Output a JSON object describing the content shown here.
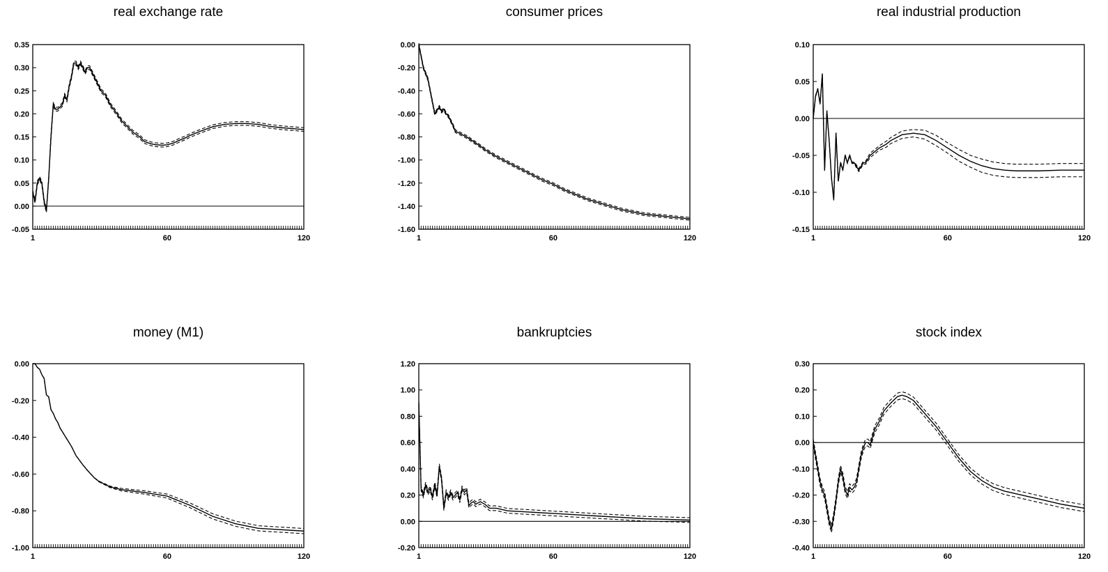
{
  "figure": {
    "x_ticks": [
      "1",
      "60",
      "120"
    ]
  },
  "chart_data": [
    {
      "type": "line",
      "title": "real exchange rate",
      "xlim": [
        1,
        120
      ],
      "ylim": [
        -0.05,
        0.35
      ],
      "y_ticks": [
        "0.35",
        "0.30",
        "0.25",
        "0.20",
        "0.15",
        "0.10",
        "0.05",
        "0.00",
        "-0.05"
      ],
      "y_tick_values": [
        0.35,
        0.3,
        0.25,
        0.2,
        0.15,
        0.1,
        0.05,
        0.0,
        -0.05
      ],
      "zero_line": true,
      "band": 0.004,
      "x": [
        1,
        2,
        3,
        4,
        5,
        6,
        7,
        8,
        9,
        10,
        11,
        12,
        14,
        15,
        16,
        17,
        18,
        19,
        20,
        21,
        22,
        23,
        24,
        25,
        26,
        27,
        28,
        29,
        30,
        31,
        33,
        35,
        38,
        40,
        43,
        45,
        48,
        50,
        53,
        55,
        58,
        60,
        63,
        65,
        68,
        70,
        75,
        80,
        85,
        90,
        95,
        100,
        105,
        110,
        115,
        120
      ],
      "y": [
        0.03,
        0.01,
        0.05,
        0.06,
        0.05,
        0.01,
        -0.01,
        0.06,
        0.15,
        0.22,
        0.21,
        0.21,
        0.22,
        0.24,
        0.23,
        0.26,
        0.28,
        0.31,
        0.31,
        0.3,
        0.31,
        0.3,
        0.29,
        0.3,
        0.3,
        0.29,
        0.28,
        0.27,
        0.26,
        0.25,
        0.24,
        0.22,
        0.2,
        0.185,
        0.17,
        0.16,
        0.15,
        0.14,
        0.135,
        0.133,
        0.132,
        0.133,
        0.137,
        0.142,
        0.148,
        0.153,
        0.163,
        0.172,
        0.177,
        0.179,
        0.179,
        0.177,
        0.173,
        0.17,
        0.168,
        0.166
      ]
    },
    {
      "type": "line",
      "title": "consumer prices",
      "xlim": [
        1,
        120
      ],
      "ylim": [
        -1.6,
        0.0
      ],
      "y_ticks": [
        "0.00",
        "-0.20",
        "-0.40",
        "-0.60",
        "-0.80",
        "-1.00",
        "-1.20",
        "-1.40",
        "-1.60"
      ],
      "y_tick_values": [
        0.0,
        -0.2,
        -0.4,
        -0.6,
        -0.8,
        -1.0,
        -1.2,
        -1.4,
        -1.6
      ],
      "zero_line": false,
      "band": 0.012,
      "x": [
        1,
        2,
        3,
        4,
        5,
        6,
        7,
        8,
        9,
        10,
        11,
        12,
        13,
        14,
        15,
        16,
        17,
        18,
        19,
        20,
        22,
        25,
        28,
        30,
        35,
        40,
        45,
        50,
        55,
        60,
        65,
        70,
        75,
        80,
        85,
        90,
        95,
        100,
        105,
        110,
        115,
        120
      ],
      "y": [
        0.0,
        -0.1,
        -0.2,
        -0.25,
        -0.3,
        -0.4,
        -0.5,
        -0.6,
        -0.57,
        -0.54,
        -0.58,
        -0.56,
        -0.6,
        -0.62,
        -0.66,
        -0.7,
        -0.75,
        -0.76,
        -0.77,
        -0.78,
        -0.8,
        -0.84,
        -0.88,
        -0.91,
        -0.97,
        -1.02,
        -1.07,
        -1.12,
        -1.17,
        -1.21,
        -1.26,
        -1.3,
        -1.34,
        -1.37,
        -1.4,
        -1.43,
        -1.45,
        -1.47,
        -1.48,
        -1.49,
        -1.5,
        -1.51
      ]
    },
    {
      "type": "line",
      "title": "real industrial production",
      "xlim": [
        1,
        120
      ],
      "ylim": [
        -0.15,
        0.1
      ],
      "y_ticks": [
        "0.10",
        "0.05",
        "0.00",
        "-0.05",
        "-0.10",
        "-0.15"
      ],
      "y_tick_values": [
        0.1,
        0.05,
        0.0,
        -0.05,
        -0.1,
        -0.15
      ],
      "zero_line": true,
      "band": [
        0.001,
        0.001,
        0.001,
        0.001,
        0.001,
        0.001,
        0.001,
        0.001,
        0.001,
        0.001,
        0.001,
        0.001,
        0.001,
        0.001,
        0.001,
        0.001,
        0.001,
        0.001,
        0.001,
        0.002,
        0.002,
        0.002,
        0.002,
        0.002,
        0.003,
        0.003,
        0.003,
        0.003,
        0.004,
        0.004,
        0.005,
        0.005,
        0.006,
        0.007,
        0.007,
        0.008,
        0.008,
        0.009,
        0.009,
        0.009,
        0.009,
        0.009,
        0.009,
        0.009
      ],
      "x": [
        1,
        2,
        3,
        4,
        5,
        6,
        7,
        8,
        9,
        10,
        11,
        12,
        13,
        14,
        15,
        16,
        17,
        18,
        19,
        20,
        21,
        22,
        23,
        24,
        25,
        26,
        28,
        30,
        33,
        35,
        40,
        45,
        50,
        55,
        60,
        65,
        70,
        75,
        80,
        85,
        90,
        100,
        110,
        120
      ],
      "y": [
        0.0,
        0.03,
        0.04,
        0.02,
        0.06,
        -0.07,
        0.01,
        -0.03,
        -0.08,
        -0.11,
        -0.02,
        -0.085,
        -0.06,
        -0.07,
        -0.05,
        -0.06,
        -0.05,
        -0.06,
        -0.06,
        -0.065,
        -0.07,
        -0.065,
        -0.06,
        -0.06,
        -0.055,
        -0.05,
        -0.045,
        -0.04,
        -0.035,
        -0.03,
        -0.022,
        -0.02,
        -0.022,
        -0.03,
        -0.04,
        -0.05,
        -0.058,
        -0.064,
        -0.068,
        -0.07,
        -0.071,
        -0.071,
        -0.07,
        -0.07
      ]
    },
    {
      "type": "line",
      "title": "money (M1)",
      "xlim": [
        1,
        120
      ],
      "ylim": [
        -1.0,
        0.0
      ],
      "y_ticks": [
        "0.00",
        "-0.20",
        "-0.40",
        "-0.60",
        "-0.80",
        "-1.00"
      ],
      "y_tick_values": [
        0.0,
        -0.2,
        -0.4,
        -0.6,
        -0.8,
        -1.0
      ],
      "zero_line": false,
      "band": [
        0.0,
        0.0,
        0.0,
        0.0,
        0.0,
        0.0,
        0.0,
        0.0,
        0.0,
        0.0,
        0.0,
        0.0,
        0.0,
        0.0,
        0.0,
        0.0,
        0.0,
        0.0,
        0.0,
        0.0,
        0.0,
        0.002,
        0.004,
        0.007,
        0.009,
        0.011,
        0.013,
        0.014,
        0.014,
        0.014,
        0.014
      ],
      "x": [
        1,
        2,
        3,
        4,
        5,
        6,
        7,
        8,
        9,
        10,
        11,
        12,
        13,
        14,
        15,
        16,
        18,
        20,
        23,
        25,
        28,
        30,
        35,
        40,
        50,
        60,
        70,
        80,
        90,
        100,
        120
      ],
      "y": [
        0.0,
        0.0,
        -0.02,
        -0.03,
        -0.06,
        -0.08,
        -0.17,
        -0.18,
        -0.25,
        -0.27,
        -0.3,
        -0.32,
        -0.35,
        -0.37,
        -0.39,
        -0.41,
        -0.45,
        -0.5,
        -0.55,
        -0.58,
        -0.62,
        -0.64,
        -0.67,
        -0.685,
        -0.7,
        -0.72,
        -0.77,
        -0.83,
        -0.87,
        -0.895,
        -0.91
      ]
    },
    {
      "type": "line",
      "title": "bankruptcies",
      "xlim": [
        1,
        120
      ],
      "ylim": [
        -0.2,
        1.2
      ],
      "y_ticks": [
        "1.20",
        "1.00",
        "0.80",
        "0.60",
        "0.40",
        "0.20",
        "0.00",
        "-0.20"
      ],
      "y_tick_values": [
        1.2,
        1.0,
        0.8,
        0.6,
        0.4,
        0.2,
        0.0,
        -0.2
      ],
      "zero_line": true,
      "band": 0.018,
      "x": [
        1,
        2,
        3,
        4,
        5,
        6,
        7,
        8,
        9,
        10,
        11,
        12,
        13,
        14,
        15,
        16,
        17,
        18,
        19,
        20,
        21,
        22,
        23,
        24,
        25,
        26,
        28,
        30,
        32,
        35,
        40,
        50,
        60,
        70,
        80,
        90,
        100,
        110,
        120
      ],
      "y": [
        0.9,
        0.25,
        0.2,
        0.28,
        0.22,
        0.25,
        0.18,
        0.28,
        0.2,
        0.42,
        0.32,
        0.1,
        0.22,
        0.18,
        0.22,
        0.18,
        0.2,
        0.22,
        0.16,
        0.25,
        0.22,
        0.24,
        0.12,
        0.14,
        0.15,
        0.13,
        0.15,
        0.13,
        0.1,
        0.1,
        0.08,
        0.07,
        0.06,
        0.05,
        0.04,
        0.03,
        0.02,
        0.015,
        0.01
      ]
    },
    {
      "type": "line",
      "title": "stock index",
      "xlim": [
        1,
        120
      ],
      "ylim": [
        -0.4,
        0.3
      ],
      "y_ticks": [
        "0.30",
        "0.20",
        "0.10",
        "0.00",
        "-0.10",
        "-0.20",
        "-0.30",
        "-0.40"
      ],
      "y_tick_values": [
        0.3,
        0.2,
        0.1,
        0.0,
        -0.1,
        -0.2,
        -0.3,
        -0.4
      ],
      "zero_line": true,
      "band": 0.013,
      "x": [
        1,
        2,
        3,
        4,
        5,
        6,
        7,
        8,
        9,
        10,
        11,
        12,
        13,
        14,
        15,
        16,
        17,
        18,
        19,
        20,
        21,
        22,
        23,
        24,
        25,
        26,
        27,
        28,
        30,
        32,
        35,
        38,
        40,
        42,
        45,
        48,
        50,
        55,
        60,
        65,
        70,
        75,
        80,
        85,
        90,
        95,
        100,
        110,
        120
      ],
      "y": [
        0.0,
        -0.05,
        -0.1,
        -0.15,
        -0.18,
        -0.2,
        -0.25,
        -0.3,
        -0.33,
        -0.28,
        -0.22,
        -0.15,
        -0.1,
        -0.13,
        -0.18,
        -0.2,
        -0.17,
        -0.18,
        -0.17,
        -0.15,
        -0.1,
        -0.05,
        -0.02,
        0.0,
        0.0,
        -0.01,
        0.02,
        0.05,
        0.08,
        0.12,
        0.15,
        0.175,
        0.18,
        0.175,
        0.16,
        0.13,
        0.11,
        0.06,
        0.0,
        -0.06,
        -0.11,
        -0.145,
        -0.17,
        -0.185,
        -0.195,
        -0.205,
        -0.215,
        -0.235,
        -0.25
      ]
    }
  ]
}
